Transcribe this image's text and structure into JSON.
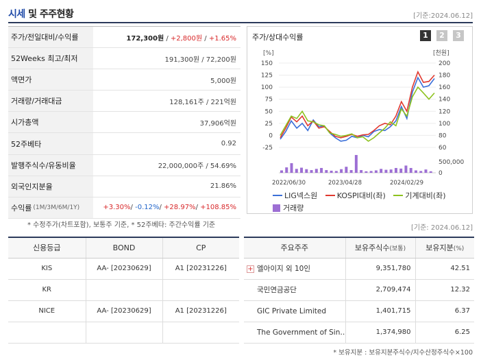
{
  "header": {
    "title_blue": "시세",
    "title_rest": " 및 주주현황",
    "date": "[기준:2024.06.12]"
  },
  "stats": [
    {
      "label": "주가/전일대비/수익률",
      "parts": [
        {
          "t": "172,300원",
          "c": "blk"
        },
        {
          "t": " / ",
          "c": ""
        },
        {
          "t": "+2,800원",
          "c": "red"
        },
        {
          "t": " / ",
          "c": ""
        },
        {
          "t": "+1.65%",
          "c": "red"
        }
      ]
    },
    {
      "label": "52Weeks 최고/최저",
      "parts": [
        {
          "t": "191,300원 / 72,200원",
          "c": ""
        }
      ]
    },
    {
      "label": "액면가",
      "parts": [
        {
          "t": "5,000원",
          "c": ""
        }
      ]
    },
    {
      "label": "거래량/거래대금",
      "parts": [
        {
          "t": "128,161주 / 221억원",
          "c": ""
        }
      ]
    },
    {
      "label": "시가총액",
      "parts": [
        {
          "t": "37,906억원",
          "c": ""
        }
      ]
    },
    {
      "label": "52주베타",
      "parts": [
        {
          "t": "0.92",
          "c": ""
        }
      ]
    },
    {
      "label": "발행주식수/유동비율",
      "parts": [
        {
          "t": "22,000,000주 / 54.69%",
          "c": ""
        }
      ]
    },
    {
      "label": "외국인지분율",
      "parts": [
        {
          "t": "21.86%",
          "c": ""
        }
      ]
    },
    {
      "label": "수익률",
      "sublabel": "(1M/3M/6M/1Y)",
      "parts": [
        {
          "t": "+3.30%",
          "c": "red"
        },
        {
          "t": "/ ",
          "c": ""
        },
        {
          "t": "-0.12%",
          "c": "bluev"
        },
        {
          "t": "/ ",
          "c": ""
        },
        {
          "t": "+28.97%",
          "c": "red"
        },
        {
          "t": "/ ",
          "c": ""
        },
        {
          "t": "+108.85%",
          "c": "red"
        }
      ]
    }
  ],
  "stats_footnote": "* 수정주가(차트포함), 보통주 기준, * 52주베타: 주간수익률 기준",
  "chart_panel": {
    "title": "주가/상대수익률",
    "pages": [
      "1",
      "2",
      "3"
    ],
    "date": "[기준: 2024.06.12]"
  },
  "chart_data": {
    "type": "line",
    "left_axis_unit": "[%]",
    "right_axis_unit": "[천원]",
    "left_ticks": [
      "150",
      "125",
      "100",
      "75",
      "50",
      "25",
      "0",
      "-25"
    ],
    "right_ticks": [
      "200",
      "180",
      "160",
      "140",
      "120",
      "100",
      "80",
      "60"
    ],
    "volume_ticks": [
      "500,000",
      "0"
    ],
    "x_labels": [
      "2022/06/30",
      "2023/04/28",
      "2024/02/29"
    ],
    "ylim": [
      -25,
      150
    ],
    "volume_max": 500000,
    "series": [
      {
        "name": "LIG넥스원",
        "color": "#3a6fd8",
        "values": [
          -8,
          8,
          30,
          15,
          25,
          10,
          32,
          18,
          20,
          5,
          -5,
          -12,
          -10,
          -2,
          -5,
          0,
          -3,
          8,
          12,
          10,
          18,
          30,
          60,
          35,
          90,
          120,
          100,
          103,
          118
        ]
      },
      {
        "name": "KOSPI대비(좌)",
        "color": "#e0382f",
        "values": [
          -5,
          15,
          38,
          28,
          40,
          20,
          30,
          15,
          18,
          8,
          -2,
          -5,
          -2,
          2,
          -2,
          1,
          2,
          10,
          20,
          25,
          22,
          40,
          70,
          50,
          100,
          132,
          110,
          112,
          125
        ]
      },
      {
        "name": "기계대비(좌)",
        "color": "#8dc21f",
        "values": [
          0,
          20,
          40,
          35,
          50,
          30,
          28,
          22,
          20,
          5,
          2,
          -2,
          0,
          3,
          -5,
          -3,
          -12,
          -5,
          5,
          15,
          28,
          20,
          55,
          40,
          80,
          100,
          88,
          75,
          88
        ]
      }
    ],
    "volume": {
      "name": "거래량",
      "color": "#9d6fd4",
      "values": [
        80000,
        180000,
        320000,
        130000,
        170000,
        120000,
        90000,
        130000,
        160000,
        90000,
        70000,
        60000,
        120000,
        200000,
        90000,
        590000,
        90000,
        50000,
        60000,
        80000,
        130000,
        100000,
        110000,
        160000,
        140000,
        240000,
        160000,
        80000,
        60000,
        110000,
        50000
      ]
    }
  },
  "credit_table": {
    "headers": [
      "신용등급",
      "BOND",
      "CP"
    ],
    "rows": [
      [
        "KIS",
        "AA-  [20230629]",
        "A1  [20231226]"
      ],
      [
        "KR",
        "",
        ""
      ],
      [
        "NICE",
        "AA-  [20230629]",
        "A1  [20231226]"
      ],
      [
        "",
        "",
        ""
      ]
    ]
  },
  "holders_table": {
    "headers": [
      "주요주주",
      "보유주식수",
      "(보통)",
      "보유지분",
      "(%)"
    ],
    "rows": [
      {
        "name": "엘아이지 외 10인",
        "expand": true,
        "shares": "9,351,780",
        "pct": "42.51"
      },
      {
        "name": "국민연금공단",
        "expand": false,
        "shares": "2,709,474",
        "pct": "12.32"
      },
      {
        "name": "GIC Private Limited",
        "expand": false,
        "shares": "1,401,715",
        "pct": "6.37"
      },
      {
        "name": "The Government of Sin…",
        "expand": false,
        "shares": "1,374,980",
        "pct": "6.25"
      }
    ]
  },
  "holders_footnote": "* 보유지분 : 보유지분주식수/지수산정주식수×100"
}
